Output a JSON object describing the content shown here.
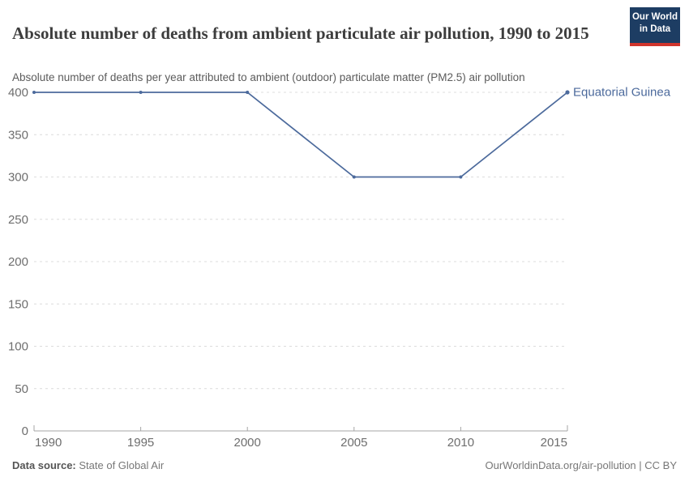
{
  "header": {
    "title": "Absolute number of deaths from ambient particulate air pollution, 1990 to 2015",
    "subtitle": "Absolute number of deaths per year attributed to ambient (outdoor) particulate matter (PM2.5) air pollution",
    "logo": {
      "line1": "Our World",
      "line2": "in Data"
    }
  },
  "chart_data": {
    "type": "line",
    "title": "Absolute number of deaths from ambient particulate air pollution, 1990 to 2015",
    "xlabel": "",
    "ylabel": "",
    "x": [
      1990,
      1995,
      2000,
      2005,
      2010,
      2015
    ],
    "series": [
      {
        "name": "Equatorial Guinea",
        "color": "#4c6a9c",
        "values": [
          400,
          400,
          400,
          300,
          300,
          400
        ]
      }
    ],
    "x_ticks": [
      "1990",
      "1995",
      "2000",
      "2005",
      "2010",
      "2015"
    ],
    "y_ticks": [
      0,
      50,
      100,
      150,
      200,
      250,
      300,
      350,
      400
    ],
    "xlim": [
      1990,
      2015
    ],
    "ylim": [
      0,
      400
    ],
    "grid": "horizontal-dashed",
    "legend_position": "end-of-line-label"
  },
  "footer": {
    "source_label": "Data source:",
    "source_value": "State of Global Air",
    "right_text": "OurWorldinData.org/air-pollution | CC BY"
  },
  "colors": {
    "series_line": "#4c6a9c",
    "logo_background": "#1d3d63",
    "logo_underline": "#cf342c",
    "gridline": "#dcdcdc",
    "axis": "#a6a6a6",
    "tick_label": "#6e6e6e",
    "title_text": "#3d3d3d"
  }
}
